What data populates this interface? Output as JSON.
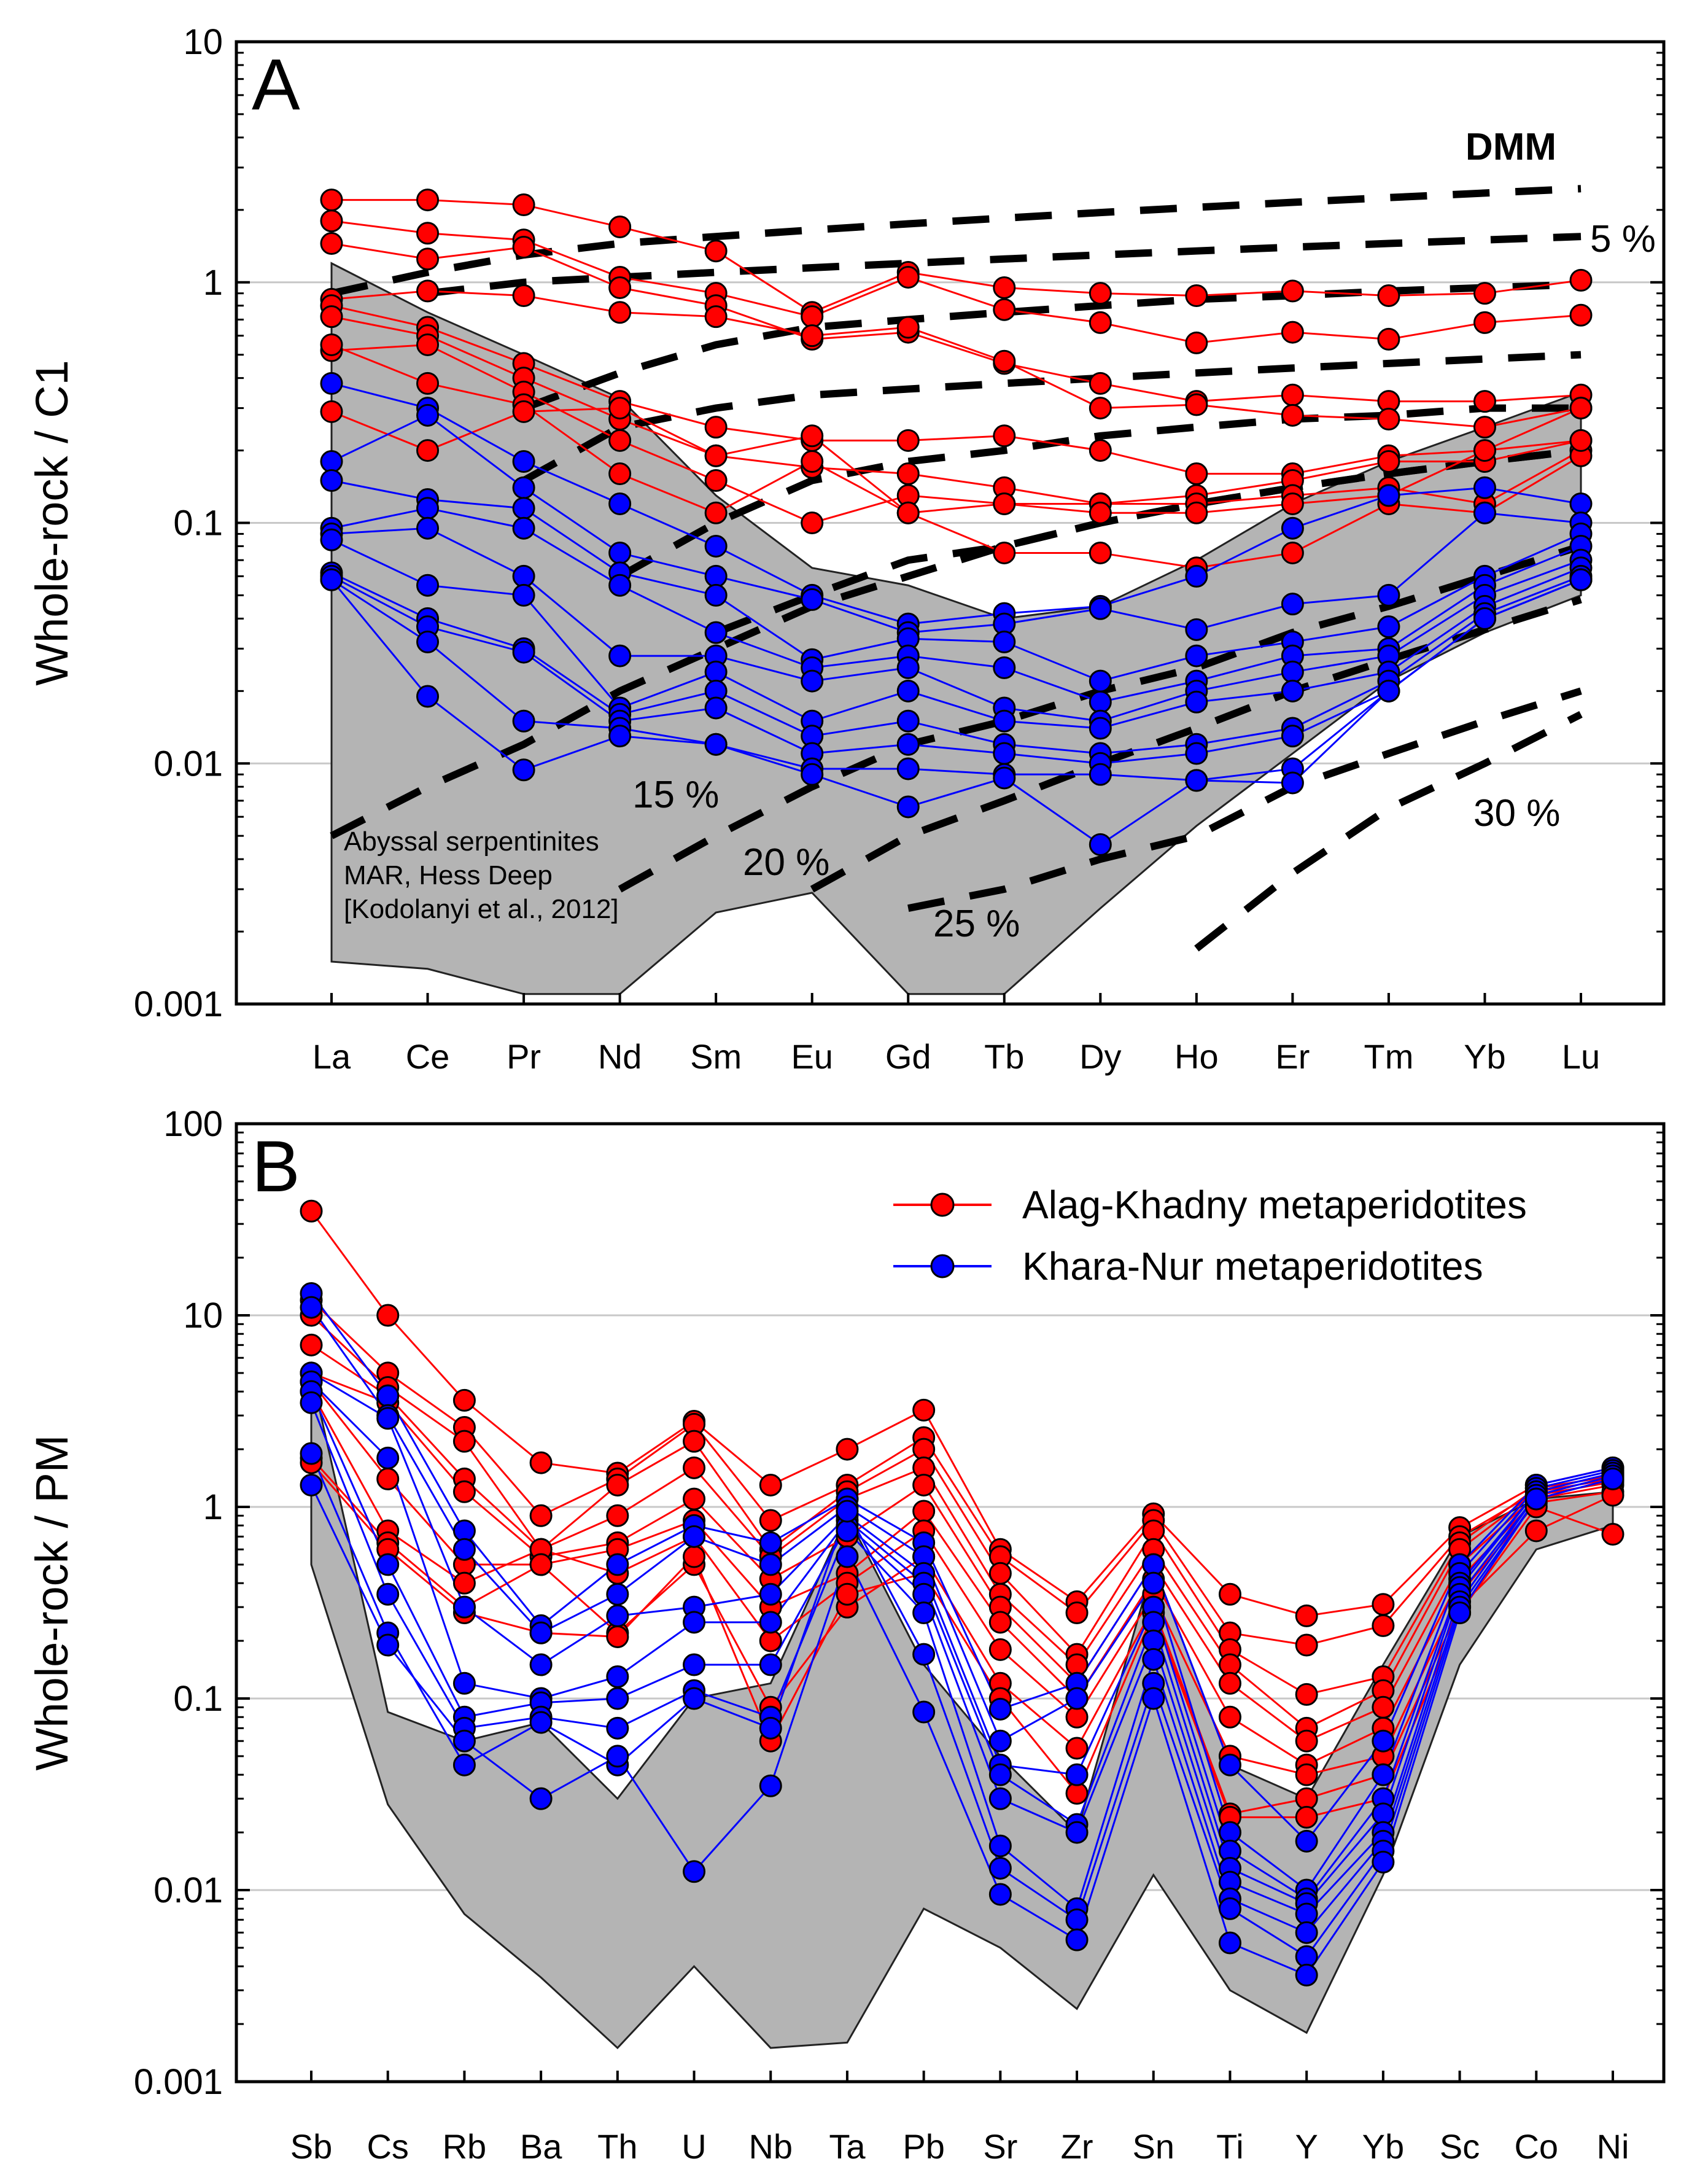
{
  "chart_data": [
    {
      "panel": "A",
      "type": "line",
      "ylabel": "Whole-rock / C1",
      "yscale": "log",
      "ylim": [
        0.001,
        10
      ],
      "yticks": [
        "0.001",
        "0.01",
        "0.1",
        "1",
        "10"
      ],
      "categories": [
        "La",
        "Ce",
        "Pr",
        "Nd",
        "Sm",
        "Eu",
        "Gd",
        "Tb",
        "Dy",
        "Ho",
        "Er",
        "Tm",
        "Yb",
        "Lu"
      ],
      "envelope": {
        "label": [
          "Abyssal serpentinites",
          "MAR, Hess Deep",
          "[Kodolanyi et al., 2012]"
        ],
        "upper": [
          1.2,
          0.75,
          0.5,
          0.33,
          0.13,
          0.065,
          0.055,
          0.04,
          0.045,
          0.07,
          0.12,
          0.18,
          0.25,
          0.35
        ],
        "lower": [
          0.0015,
          0.0014,
          0.0011,
          0.0011,
          0.0024,
          0.0029,
          0.0011,
          0.0011,
          0.0025,
          0.0055,
          0.011,
          0.022,
          0.035,
          0.05
        ]
      },
      "melting_model": {
        "dmm_label": "DMM",
        "labels": [
          "5 %",
          "15 %",
          "20 %",
          "25 %",
          "30 %"
        ],
        "curves": [
          [
            0.9,
            1.1,
            1.3,
            1.45,
            1.55,
            1.65,
            1.75,
            1.85,
            1.95,
            2.05,
            2.15,
            2.25,
            2.35,
            2.45
          ],
          [
            null,
            0.9,
            1.0,
            1.05,
            1.1,
            1.15,
            1.2,
            1.25,
            1.3,
            1.35,
            1.4,
            1.45,
            1.5,
            1.55
          ],
          [
            null,
            null,
            0.3,
            0.42,
            0.55,
            0.65,
            0.7,
            0.75,
            0.8,
            0.85,
            0.88,
            0.92,
            0.95,
            0.98
          ],
          [
            null,
            null,
            0.15,
            0.25,
            0.3,
            0.34,
            0.36,
            0.38,
            0.4,
            0.42,
            0.44,
            0.46,
            0.48,
            0.5
          ],
          [
            null,
            null,
            null,
            0.06,
            0.1,
            0.15,
            0.18,
            0.2,
            0.23,
            0.25,
            0.27,
            0.28,
            0.3,
            0.3
          ],
          [
            null,
            null,
            null,
            null,
            0.035,
            0.05,
            0.07,
            0.08,
            0.1,
            0.12,
            0.14,
            0.16,
            0.18,
            0.2
          ],
          [
            0.005,
            0.008,
            0.012,
            0.02,
            0.03,
            0.045,
            0.06,
            0.08,
            0.1,
            0.12,
            0.14,
            0.16,
            0.18,
            0.2
          ],
          [
            null,
            null,
            null,
            0.003,
            0.005,
            0.008,
            0.012,
            0.015,
            0.02,
            0.025,
            0.035,
            0.045,
            0.06,
            0.08
          ],
          [
            null,
            null,
            null,
            null,
            null,
            0.003,
            0.005,
            0.007,
            0.01,
            0.014,
            0.02,
            0.027,
            0.036,
            0.048
          ],
          [
            null,
            null,
            null,
            null,
            null,
            null,
            0.0025,
            0.003,
            0.004,
            0.005,
            0.008,
            0.011,
            0.015,
            0.02
          ],
          [
            null,
            null,
            null,
            null,
            null,
            null,
            null,
            null,
            null,
            0.0017,
            0.0035,
            0.0065,
            0.01,
            0.016
          ]
        ]
      },
      "series": [
        {
          "name": "Alag-Khadny metaperidotites",
          "color": "#ff0000",
          "lines": [
            [
              2.2,
              2.2,
              2.1,
              1.7,
              1.35,
              0.75,
              1.1,
              0.95,
              0.9,
              0.88,
              0.92,
              0.88,
              0.9,
              1.02
            ],
            [
              1.8,
              1.6,
              1.5,
              1.05,
              0.9,
              0.72,
              1.05,
              0.77,
              0.68,
              0.56,
              0.62,
              0.58,
              0.68,
              0.73
            ],
            [
              1.45,
              1.25,
              1.4,
              0.95,
              0.8,
              0.58,
              0.62,
              0.46,
              0.38,
              0.32,
              0.34,
              0.32,
              0.32,
              0.34
            ],
            [
              0.85,
              0.92,
              0.88,
              0.75,
              0.72,
              0.6,
              0.65,
              0.47,
              0.3,
              0.31,
              0.28,
              0.27,
              0.25,
              0.3
            ],
            [
              0.8,
              0.65,
              0.46,
              0.32,
              0.25,
              0.22,
              0.22,
              0.23,
              0.2,
              0.16,
              0.16,
              0.19,
              0.2,
              0.3
            ],
            [
              0.72,
              0.6,
              0.4,
              0.27,
              0.19,
              0.17,
              0.16,
              0.14,
              0.12,
              0.13,
              0.15,
              0.18,
              0.18,
              0.22
            ],
            [
              0.52,
              0.55,
              0.35,
              0.22,
              0.15,
              0.1,
              0.13,
              0.12,
              0.12,
              0.12,
              0.13,
              0.14,
              0.12,
              0.2
            ],
            [
              0.55,
              0.38,
              0.31,
              0.16,
              0.11,
              0.18,
              0.11,
              0.075,
              0.075,
              0.065,
              0.075,
              0.12,
              0.11,
              0.19
            ],
            [
              0.29,
              0.2,
              0.29,
              0.3,
              0.19,
              0.23,
              0.11,
              0.12,
              0.11,
              0.11,
              0.12,
              0.13,
              0.2,
              0.22
            ]
          ]
        },
        {
          "name": "Khara-Nur metaperidotites",
          "color": "#0000ff",
          "lines": [
            [
              0.38,
              0.3,
              0.18,
              0.12,
              0.08,
              0.05,
              0.038,
              0.042,
              0.045,
              0.06,
              0.095,
              0.13,
              0.14,
              0.12
            ],
            [
              0.18,
              0.28,
              0.14,
              0.075,
              0.06,
              0.048,
              0.035,
              0.038,
              0.044,
              0.036,
              0.046,
              0.05,
              0.11,
              0.1
            ],
            [
              0.15,
              0.125,
              0.115,
              0.062,
              0.05,
              0.027,
              0.033,
              0.032,
              0.022,
              0.028,
              0.032,
              0.037,
              0.06,
              0.09
            ],
            [
              0.095,
              0.115,
              0.095,
              0.055,
              0.035,
              0.025,
              0.028,
              0.025,
              0.018,
              0.022,
              0.028,
              0.03,
              0.055,
              0.08
            ],
            [
              0.09,
              0.095,
              0.06,
              0.028,
              0.028,
              0.022,
              0.025,
              0.017,
              0.015,
              0.02,
              0.024,
              0.028,
              0.05,
              0.07
            ],
            [
              0.085,
              0.055,
              0.05,
              0.017,
              0.024,
              0.015,
              0.02,
              0.015,
              0.014,
              0.018,
              0.02,
              0.024,
              0.045,
              0.065
            ],
            [
              0.062,
              0.04,
              0.03,
              0.016,
              0.02,
              0.013,
              0.015,
              0.012,
              0.011,
              0.012,
              0.014,
              0.022,
              0.042,
              0.06
            ],
            [
              0.06,
              0.037,
              0.029,
              0.015,
              0.017,
              0.011,
              0.012,
              0.011,
              0.01,
              0.011,
              0.013,
              0.02,
              0.04,
              0.058
            ],
            [
              0.058,
              0.032,
              0.015,
              0.014,
              0.012,
              0.0095,
              0.0095,
              0.009,
              0.009,
              0.0085,
              0.0095,
              0.02,
              0.04,
              0.058
            ],
            [
              0.058,
              0.019,
              0.0094,
              0.013,
              0.012,
              0.009,
              0.0066,
              0.0087,
              0.0046,
              0.0085,
              0.0083,
              0.02,
              0.04,
              0.058
            ]
          ]
        }
      ]
    },
    {
      "panel": "B",
      "type": "line",
      "ylabel": "Whole-rock / PM",
      "yscale": "log",
      "ylim": [
        0.001,
        100
      ],
      "yticks": [
        "0.001",
        "0.01",
        "0.1",
        "1",
        "10",
        "100"
      ],
      "categories": [
        "Sb",
        "Cs",
        "Rb",
        "Ba",
        "Th",
        "U",
        "Nb",
        "Ta",
        "Pb",
        "Sr",
        "Zr",
        "Sn",
        "Ti",
        "Y",
        "Yb",
        "Sc",
        "Co",
        "Ni"
      ],
      "legend": {
        "position": "top-right",
        "entries": [
          "Alag-Khadny metaperidotites",
          "Khara-Nur metaperidotites"
        ]
      },
      "envelope": {
        "upper": [
          5,
          0.085,
          0.06,
          0.075,
          0.03,
          0.1,
          0.12,
          0.9,
          0.15,
          0.05,
          0.02,
          0.5,
          0.045,
          0.03,
          0.15,
          0.7,
          1.1,
          1.2
        ],
        "lower": [
          0.5,
          0.028,
          0.0075,
          0.0035,
          0.0015,
          0.004,
          0.0015,
          0.0016,
          0.008,
          0.005,
          0.0024,
          0.012,
          0.003,
          0.0018,
          0.012,
          0.15,
          0.6,
          0.8
        ]
      },
      "series": [
        {
          "name": "Alag-Khadny metaperidotites",
          "color": "#ff0000",
          "lines": [
            [
              35,
              10,
              3.6,
              1.7,
              1.5,
              2.8,
              1.3,
              2.0,
              3.2,
              0.6,
              0.32,
              0.92,
              0.35,
              0.27,
              0.31,
              0.78,
              1.3,
              1.6
            ],
            [
              12,
              5.0,
              2.6,
              0.9,
              1.4,
              2.7,
              0.85,
              1.3,
              2.3,
              0.55,
              0.28,
              0.85,
              0.22,
              0.19,
              0.24,
              0.7,
              1.2,
              1.5
            ],
            [
              10,
              4.2,
              2.2,
              0.6,
              1.3,
              2.2,
              0.6,
              1.2,
              2.0,
              0.45,
              0.17,
              0.75,
              0.18,
              0.105,
              0.13,
              0.65,
              1.25,
              1.45
            ],
            [
              7,
              3.8,
              1.4,
              0.6,
              0.9,
              1.6,
              0.55,
              1.1,
              1.6,
              0.35,
              0.15,
              0.6,
              0.15,
              0.07,
              0.11,
              0.6,
              1.2,
              1.4
            ],
            [
              5,
              3.5,
              1.2,
              0.55,
              0.65,
              1.1,
              0.42,
              0.7,
              1.3,
              0.3,
              0.12,
              0.5,
              0.12,
              0.06,
              0.09,
              0.5,
              1.15,
              1.35
            ],
            [
              4.5,
              1.4,
              0.5,
              0.5,
              0.6,
              0.85,
              0.3,
              0.45,
              0.95,
              0.25,
              0.1,
              0.42,
              0.08,
              0.045,
              0.07,
              0.42,
              1.1,
              1.3
            ],
            [
              4,
              0.75,
              0.4,
              0.6,
              0.45,
              0.7,
              0.2,
              0.4,
              0.75,
              0.18,
              0.08,
              0.35,
              0.05,
              0.04,
              0.05,
              0.35,
              1.05,
              1.2
            ],
            [
              1.8,
              0.65,
              0.3,
              0.5,
              0.22,
              0.5,
              0.09,
              0.3,
              0.55,
              0.12,
              0.055,
              0.3,
              0.025,
              0.03,
              0.04,
              0.3,
              0.75,
              1.15
            ],
            [
              1.7,
              0.6,
              0.28,
              0.22,
              0.21,
              0.55,
              0.06,
              0.35,
              0.45,
              0.1,
              0.032,
              0.28,
              0.024,
              0.024,
              0.03,
              0.28,
              1.0,
              0.72
            ]
          ]
        },
        {
          "name": "Khara-Nur metaperidotites",
          "color": "#0000ff",
          "lines": [
            [
              13,
              3.8,
              0.75,
              0.24,
              0.5,
              0.8,
              0.65,
              1.1,
              0.65,
              0.088,
              0.12,
              0.5,
              0.045,
              0.018,
              0.06,
              0.5,
              1.3,
              1.6
            ],
            [
              11,
              3.0,
              0.6,
              0.22,
              0.35,
              0.7,
              0.5,
              1.0,
              0.55,
              0.06,
              0.1,
              0.4,
              0.02,
              0.01,
              0.04,
              0.45,
              1.25,
              1.55
            ],
            [
              5,
              2.9,
              0.3,
              0.15,
              0.27,
              0.3,
              0.35,
              0.9,
              0.45,
              0.045,
              0.04,
              0.3,
              0.016,
              0.009,
              0.03,
              0.4,
              1.2,
              1.5
            ],
            [
              4.5,
              1.8,
              0.12,
              0.1,
              0.13,
              0.25,
              0.25,
              0.85,
              0.4,
              0.04,
              0.022,
              0.25,
              0.013,
              0.0085,
              0.025,
              0.38,
              1.2,
              1.5
            ],
            [
              4,
              0.5,
              0.08,
              0.095,
              0.1,
              0.15,
              0.15,
              0.8,
              0.35,
              0.03,
              0.02,
              0.2,
              0.011,
              0.0075,
              0.02,
              0.35,
              1.15,
              1.45
            ],
            [
              3.5,
              0.35,
              0.07,
              0.08,
              0.07,
              0.11,
              0.08,
              0.75,
              0.28,
              0.017,
              0.008,
              0.16,
              0.009,
              0.006,
              0.018,
              0.32,
              1.15,
              1.45
            ],
            [
              1.9,
              0.22,
              0.045,
              0.075,
              0.045,
              0.1,
              0.07,
              0.95,
              0.17,
              0.013,
              0.007,
              0.12,
              0.008,
              0.0045,
              0.016,
              0.3,
              1.1,
              1.4
            ],
            [
              1.3,
              0.19,
              0.06,
              0.03,
              0.05,
              0.0125,
              0.035,
              0.55,
              0.085,
              0.0095,
              0.0055,
              0.1,
              0.0053,
              0.0036,
              0.014,
              0.28,
              1.1,
              1.4
            ]
          ]
        }
      ]
    }
  ]
}
